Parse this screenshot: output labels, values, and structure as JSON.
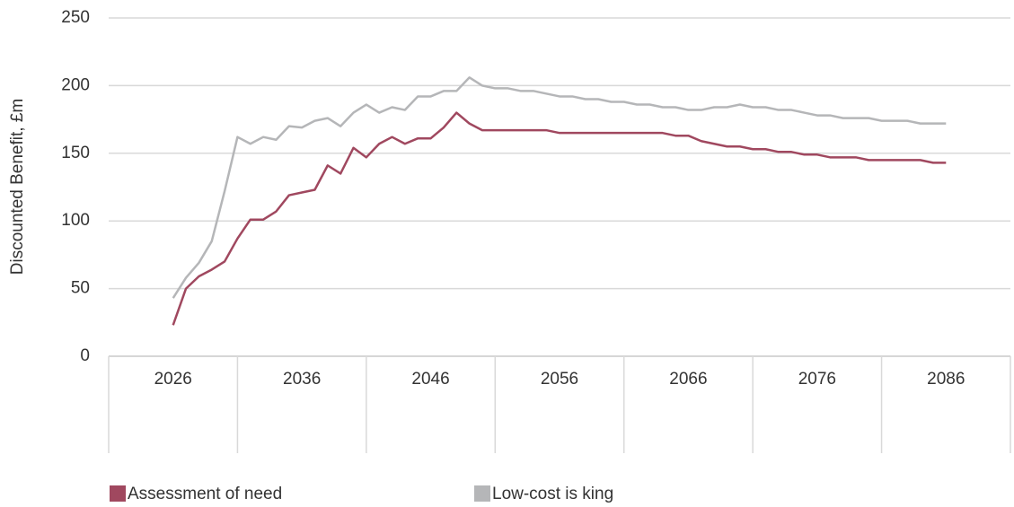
{
  "chart_data": {
    "type": "line",
    "y_label": "Discounted Benefit, £m",
    "x": [
      2026,
      2027,
      2028,
      2029,
      2030,
      2031,
      2032,
      2033,
      2034,
      2035,
      2036,
      2037,
      2038,
      2039,
      2040,
      2041,
      2042,
      2043,
      2044,
      2045,
      2046,
      2047,
      2048,
      2049,
      2050,
      2051,
      2052,
      2053,
      2054,
      2055,
      2056,
      2057,
      2058,
      2059,
      2060,
      2061,
      2062,
      2063,
      2064,
      2065,
      2066,
      2067,
      2068,
      2069,
      2070,
      2071,
      2072,
      2073,
      2074,
      2075,
      2076,
      2077,
      2078,
      2079,
      2080,
      2081,
      2082,
      2083,
      2084,
      2085,
      2086
    ],
    "series": [
      {
        "name": "Assessment of need",
        "color": "#a0485f",
        "values": [
          23,
          50,
          59,
          64,
          70,
          87,
          101,
          101,
          107,
          119,
          121,
          123,
          141,
          135,
          154,
          147,
          157,
          162,
          157,
          161,
          161,
          169,
          180,
          172,
          167,
          167,
          167,
          167,
          167,
          167,
          165,
          165,
          165,
          165,
          165,
          165,
          165,
          165,
          165,
          163,
          163,
          159,
          157,
          155,
          155,
          153,
          153,
          151,
          151,
          149,
          149,
          147,
          147,
          147,
          145,
          145,
          145,
          145,
          145,
          143,
          143
        ]
      },
      {
        "name": "Low-cost is king",
        "color": "#b5b6b8",
        "values": [
          43,
          58,
          69,
          85,
          122,
          162,
          157,
          162,
          160,
          170,
          169,
          174,
          176,
          170,
          180,
          186,
          180,
          184,
          182,
          192,
          192,
          196,
          196,
          206,
          200,
          198,
          198,
          196,
          196,
          194,
          192,
          192,
          190,
          190,
          188,
          188,
          186,
          186,
          184,
          184,
          182,
          182,
          184,
          184,
          186,
          184,
          184,
          182,
          182,
          180,
          178,
          178,
          176,
          176,
          176,
          174,
          174,
          174,
          172,
          172,
          172
        ]
      }
    ],
    "xlim": [
      2021,
      2091
    ],
    "xticks": [
      2026,
      2036,
      2046,
      2056,
      2066,
      2076,
      2086
    ],
    "ylim": [
      0,
      250
    ],
    "yticks": [
      0,
      50,
      100,
      150,
      200,
      250
    ],
    "grid": true
  }
}
